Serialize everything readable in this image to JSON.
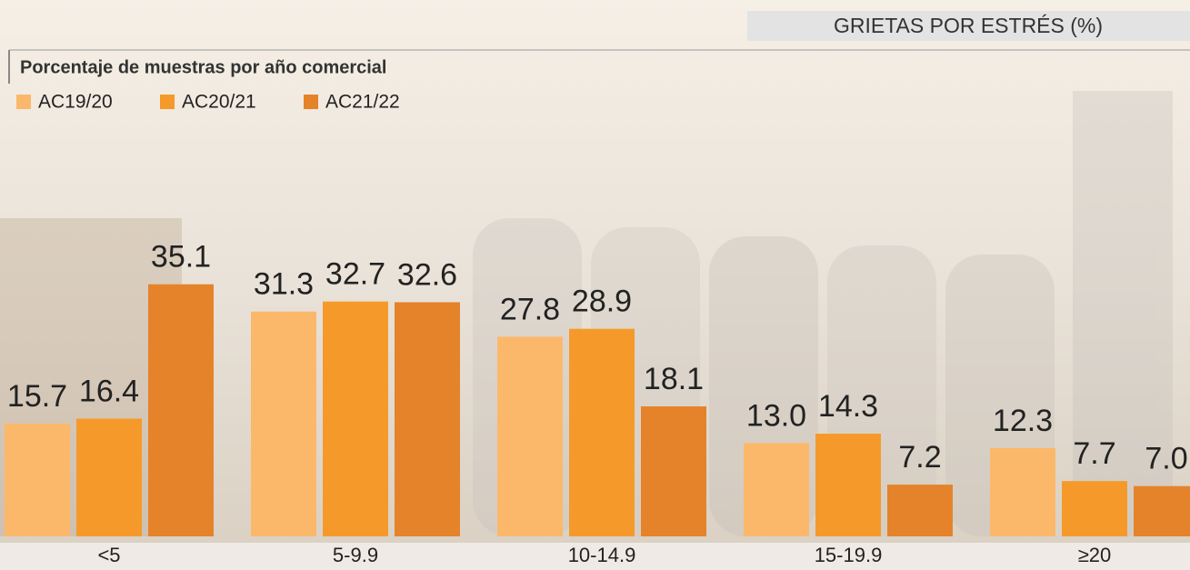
{
  "chart_data": {
    "type": "bar",
    "title": "GRIETAS POR ESTRÉS (%)",
    "subtitle": "Porcentaje de muestras por año comercial",
    "categories": [
      "<5",
      "5-9.9",
      "10-14.9",
      "15-19.9",
      "≥20"
    ],
    "series": [
      {
        "name": "AC19/20",
        "color": "#fbb86b",
        "values": [
          15.7,
          31.3,
          27.8,
          13.0,
          12.3
        ],
        "value_labels": [
          "15.7",
          "31.3",
          "27.8",
          "13.0",
          "12.3"
        ]
      },
      {
        "name": "AC20/21",
        "color": "#f59a2a",
        "values": [
          16.4,
          32.7,
          28.9,
          14.3,
          7.7
        ],
        "value_labels": [
          "16.4",
          "32.7",
          "28.9",
          "14.3",
          "7.7"
        ]
      },
      {
        "name": "AC21/22",
        "color": "#e5832a",
        "values": [
          35.1,
          32.6,
          18.1,
          7.2,
          7.0
        ],
        "value_labels": [
          "35.1",
          "32.6",
          "18.1",
          "7.2",
          "7.0"
        ]
      }
    ]
  }
}
